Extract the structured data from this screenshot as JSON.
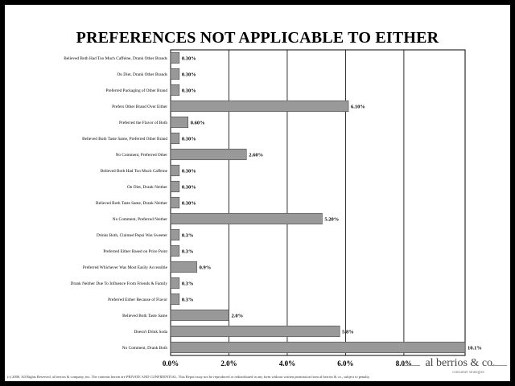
{
  "title": "PREFERENCES NOT APPLICABLE TO EITHER",
  "footer_text": "(c) 2006. All Rights Reserved. al berrios & company, inc. The contents herein are PRIVATE AND CONFIDENTIAL. This Report may not be reproduced or redistributed in any form without written permission from al berrios & co., subject to penalty.",
  "brand": {
    "name": "al berrios & co.",
    "tagline": "consumer strategies"
  },
  "colors": {
    "bar_fill": "#999999",
    "bar_stroke": "#333333",
    "page_border": "#000000"
  },
  "chart_data": {
    "type": "bar",
    "orientation": "horizontal",
    "title": "PREFERENCES NOT APPLICABLE TO EITHER",
    "xlim": [
      0,
      10.1
    ],
    "x_ticks": [
      0,
      2,
      4,
      6,
      8
    ],
    "x_tick_labels": [
      "0.0%",
      "2.0%",
      "4.0%",
      "6.0%",
      "8.0%"
    ],
    "grid": true,
    "categories": [
      "Believed Both Had Too Much Caffeine, Drank Other Brands",
      "On Diet, Drank Other Brands",
      "Preferred Packaging of Other Brand",
      "Prefers Other Brand Over Either",
      "Preferred the Flavor of Both",
      "Believed Both Taste Same, Preferred Other Brand",
      "No Comment, Preferred Other",
      "Believed Both Had Too Much Caffeine",
      "On Diet, Drank Neither",
      "Believed Both Taste Same, Drank Neither",
      "No Comment, Preferred Neither",
      "Drinks Both, Claimed Pepsi Was Sweeter",
      "Preferred Either Based on Price Point",
      "Preferred Whichever Was Most Easily Accessible",
      "Drank Neither Due To Influence From Friends & Family",
      "Preferred Either Because of Flavor",
      "Believed Both Taste Same",
      "Doesn't Drink Soda",
      "No Comment, Drank Both"
    ],
    "values": [
      0.3,
      0.3,
      0.3,
      6.1,
      0.6,
      0.3,
      2.6,
      0.3,
      0.3,
      0.3,
      5.2,
      0.3,
      0.3,
      0.9,
      0.3,
      0.3,
      2.0,
      5.8,
      10.1
    ],
    "value_labels": [
      "0.30%",
      "0.30%",
      "0.30%",
      "6.10%",
      "0.60%",
      "0.30%",
      "2.60%",
      "0.30%",
      "0.30%",
      "0.30%",
      "5.20%",
      "0.3%",
      "0.3%",
      "0.9%",
      "0.3%",
      "0.3%",
      "2.0%",
      "5.8%",
      "10.1%"
    ]
  }
}
